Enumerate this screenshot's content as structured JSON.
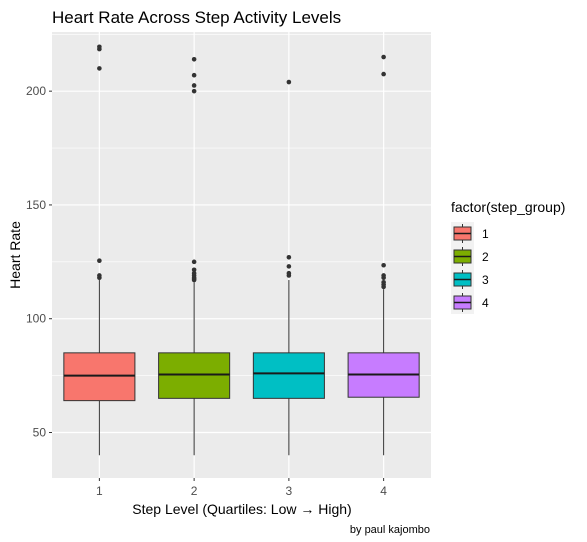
{
  "chart_data": {
    "type": "box",
    "title": "Heart Rate Across Step Activity Levels",
    "xlabel": "Step Level (Quartiles: Low → High)",
    "ylabel": "Heart Rate",
    "caption": "by paul kajombo",
    "ylim": [
      30,
      226
    ],
    "yticks": [
      50,
      100,
      150,
      200
    ],
    "grid": true,
    "legend": {
      "title": "factor(step_group)",
      "position": "right"
    },
    "categories": [
      "1",
      "2",
      "3",
      "4"
    ],
    "series": [
      {
        "name": "1",
        "color": "#F8766D",
        "min": 40,
        "q1": 64,
        "median": 75,
        "q3": 85,
        "max": 117,
        "outliers": [
          118,
          119,
          125.5,
          210,
          218.5,
          219.5
        ]
      },
      {
        "name": "2",
        "color": "#7CAE00",
        "min": 40,
        "q1": 65,
        "median": 75.5,
        "q3": 85,
        "max": 116,
        "outliers": [
          117,
          117.5,
          118,
          119,
          120,
          121.5,
          125,
          200,
          202.5,
          207,
          214
        ]
      },
      {
        "name": "3",
        "color": "#00BFC4",
        "min": 40,
        "q1": 65,
        "median": 76,
        "q3": 85,
        "max": 117,
        "outliers": [
          119,
          120,
          123,
          127,
          204
        ]
      },
      {
        "name": "4",
        "color": "#C77CFF",
        "min": 40,
        "q1": 65.5,
        "median": 75.5,
        "q3": 85,
        "max": 113,
        "outliers": [
          114,
          115,
          116,
          118,
          119,
          123.5,
          207.5,
          215
        ]
      }
    ]
  }
}
